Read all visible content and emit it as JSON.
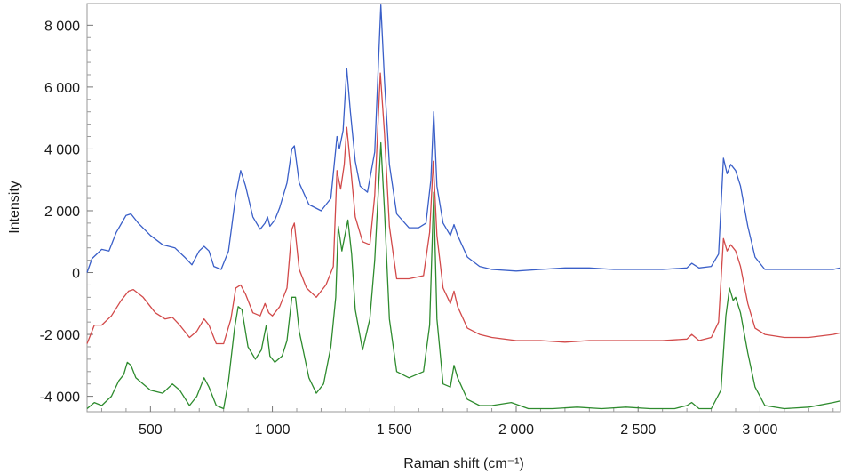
{
  "chart_data": {
    "type": "line",
    "title": "",
    "xlabel": "Raman shift (cm⁻¹)",
    "ylabel": "Intensity",
    "xlim": [
      240,
      3330
    ],
    "ylim": [
      -4500,
      8700
    ],
    "x_ticks": [
      500,
      1000,
      1500,
      2000,
      2500,
      3000
    ],
    "x_tick_labels": [
      "500",
      "1 000",
      "1 500",
      "2 000",
      "2 500",
      "3 000"
    ],
    "y_ticks": [
      -4000,
      -2000,
      0,
      2000,
      4000,
      6000,
      8000
    ],
    "y_tick_labels": [
      "-4 000",
      "-2 000",
      "0",
      "2 000",
      "4 000",
      "6 000",
      "8 000"
    ],
    "grid": false,
    "legend": "none",
    "series": [
      {
        "color": "#3a5fc8",
        "points": [
          [
            240,
            0
          ],
          [
            260,
            450
          ],
          [
            300,
            750
          ],
          [
            330,
            700
          ],
          [
            360,
            1300
          ],
          [
            400,
            1850
          ],
          [
            420,
            1900
          ],
          [
            450,
            1600
          ],
          [
            500,
            1200
          ],
          [
            550,
            900
          ],
          [
            600,
            800
          ],
          [
            640,
            500
          ],
          [
            670,
            250
          ],
          [
            700,
            700
          ],
          [
            720,
            850
          ],
          [
            740,
            700
          ],
          [
            760,
            200
          ],
          [
            790,
            100
          ],
          [
            820,
            700
          ],
          [
            850,
            2500
          ],
          [
            870,
            3300
          ],
          [
            890,
            2800
          ],
          [
            920,
            1800
          ],
          [
            950,
            1400
          ],
          [
            970,
            1600
          ],
          [
            980,
            1800
          ],
          [
            990,
            1500
          ],
          [
            1010,
            1700
          ],
          [
            1030,
            2100
          ],
          [
            1060,
            2900
          ],
          [
            1080,
            4000
          ],
          [
            1090,
            4100
          ],
          [
            1110,
            2900
          ],
          [
            1150,
            2200
          ],
          [
            1200,
            2000
          ],
          [
            1240,
            2400
          ],
          [
            1265,
            4400
          ],
          [
            1275,
            4000
          ],
          [
            1290,
            4600
          ],
          [
            1305,
            6600
          ],
          [
            1320,
            5200
          ],
          [
            1340,
            3600
          ],
          [
            1360,
            2800
          ],
          [
            1390,
            2600
          ],
          [
            1420,
            3900
          ],
          [
            1445,
            8650
          ],
          [
            1460,
            6200
          ],
          [
            1480,
            3500
          ],
          [
            1510,
            1900
          ],
          [
            1560,
            1450
          ],
          [
            1600,
            1450
          ],
          [
            1630,
            1600
          ],
          [
            1650,
            3000
          ],
          [
            1662,
            5200
          ],
          [
            1675,
            2800
          ],
          [
            1700,
            1600
          ],
          [
            1730,
            1200
          ],
          [
            1745,
            1550
          ],
          [
            1760,
            1200
          ],
          [
            1800,
            500
          ],
          [
            1850,
            200
          ],
          [
            1900,
            100
          ],
          [
            2000,
            50
          ],
          [
            2100,
            100
          ],
          [
            2200,
            150
          ],
          [
            2300,
            150
          ],
          [
            2400,
            100
          ],
          [
            2500,
            100
          ],
          [
            2600,
            100
          ],
          [
            2700,
            150
          ],
          [
            2720,
            300
          ],
          [
            2750,
            150
          ],
          [
            2800,
            200
          ],
          [
            2830,
            600
          ],
          [
            2850,
            3700
          ],
          [
            2865,
            3200
          ],
          [
            2880,
            3500
          ],
          [
            2900,
            3300
          ],
          [
            2920,
            2800
          ],
          [
            2950,
            1500
          ],
          [
            2980,
            500
          ],
          [
            3000,
            300
          ],
          [
            3020,
            100
          ],
          [
            3100,
            100
          ],
          [
            3200,
            100
          ],
          [
            3300,
            100
          ],
          [
            3330,
            150
          ]
        ]
      },
      {
        "color": "#d24a4a",
        "points": [
          [
            240,
            -2300
          ],
          [
            270,
            -1700
          ],
          [
            300,
            -1700
          ],
          [
            340,
            -1400
          ],
          [
            380,
            -900
          ],
          [
            410,
            -600
          ],
          [
            430,
            -550
          ],
          [
            470,
            -800
          ],
          [
            520,
            -1300
          ],
          [
            560,
            -1500
          ],
          [
            590,
            -1450
          ],
          [
            620,
            -1700
          ],
          [
            660,
            -2100
          ],
          [
            690,
            -1900
          ],
          [
            720,
            -1500
          ],
          [
            740,
            -1700
          ],
          [
            770,
            -2300
          ],
          [
            800,
            -2300
          ],
          [
            830,
            -1500
          ],
          [
            850,
            -500
          ],
          [
            870,
            -400
          ],
          [
            890,
            -700
          ],
          [
            920,
            -1300
          ],
          [
            950,
            -1400
          ],
          [
            970,
            -1000
          ],
          [
            985,
            -1300
          ],
          [
            1000,
            -1400
          ],
          [
            1030,
            -1100
          ],
          [
            1060,
            -500
          ],
          [
            1080,
            1400
          ],
          [
            1090,
            1600
          ],
          [
            1110,
            100
          ],
          [
            1140,
            -500
          ],
          [
            1180,
            -800
          ],
          [
            1220,
            -400
          ],
          [
            1250,
            200
          ],
          [
            1265,
            3300
          ],
          [
            1280,
            2700
          ],
          [
            1295,
            3500
          ],
          [
            1305,
            4700
          ],
          [
            1320,
            3500
          ],
          [
            1340,
            1800
          ],
          [
            1370,
            1000
          ],
          [
            1400,
            900
          ],
          [
            1420,
            2500
          ],
          [
            1443,
            6450
          ],
          [
            1460,
            4500
          ],
          [
            1480,
            1500
          ],
          [
            1510,
            -200
          ],
          [
            1560,
            -200
          ],
          [
            1620,
            -100
          ],
          [
            1645,
            1300
          ],
          [
            1660,
            3600
          ],
          [
            1675,
            1200
          ],
          [
            1700,
            -500
          ],
          [
            1730,
            -1000
          ],
          [
            1745,
            -600
          ],
          [
            1760,
            -1100
          ],
          [
            1800,
            -1800
          ],
          [
            1850,
            -2000
          ],
          [
            1900,
            -2100
          ],
          [
            2000,
            -2200
          ],
          [
            2100,
            -2200
          ],
          [
            2200,
            -2250
          ],
          [
            2300,
            -2200
          ],
          [
            2400,
            -2200
          ],
          [
            2500,
            -2200
          ],
          [
            2600,
            -2200
          ],
          [
            2700,
            -2150
          ],
          [
            2720,
            -2000
          ],
          [
            2750,
            -2200
          ],
          [
            2800,
            -2100
          ],
          [
            2830,
            -1600
          ],
          [
            2850,
            1100
          ],
          [
            2865,
            700
          ],
          [
            2880,
            900
          ],
          [
            2900,
            700
          ],
          [
            2920,
            200
          ],
          [
            2950,
            -1000
          ],
          [
            2980,
            -1800
          ],
          [
            3000,
            -1900
          ],
          [
            3020,
            -2000
          ],
          [
            3100,
            -2100
          ],
          [
            3200,
            -2100
          ],
          [
            3300,
            -2000
          ],
          [
            3330,
            -1950
          ]
        ]
      },
      {
        "color": "#2e8b2e",
        "points": [
          [
            240,
            -4400
          ],
          [
            270,
            -4200
          ],
          [
            300,
            -4300
          ],
          [
            340,
            -4000
          ],
          [
            370,
            -3500
          ],
          [
            390,
            -3300
          ],
          [
            405,
            -2900
          ],
          [
            420,
            -3000
          ],
          [
            440,
            -3400
          ],
          [
            470,
            -3600
          ],
          [
            500,
            -3800
          ],
          [
            550,
            -3900
          ],
          [
            590,
            -3600
          ],
          [
            620,
            -3800
          ],
          [
            660,
            -4300
          ],
          [
            690,
            -4000
          ],
          [
            720,
            -3400
          ],
          [
            740,
            -3700
          ],
          [
            770,
            -4300
          ],
          [
            800,
            -4400
          ],
          [
            820,
            -3500
          ],
          [
            845,
            -1800
          ],
          [
            860,
            -1100
          ],
          [
            875,
            -1200
          ],
          [
            900,
            -2400
          ],
          [
            930,
            -2800
          ],
          [
            955,
            -2500
          ],
          [
            975,
            -1700
          ],
          [
            990,
            -2700
          ],
          [
            1010,
            -2900
          ],
          [
            1040,
            -2700
          ],
          [
            1060,
            -2200
          ],
          [
            1080,
            -800
          ],
          [
            1095,
            -800
          ],
          [
            1110,
            -1900
          ],
          [
            1150,
            -3400
          ],
          [
            1180,
            -3900
          ],
          [
            1210,
            -3600
          ],
          [
            1240,
            -2400
          ],
          [
            1260,
            -800
          ],
          [
            1270,
            1500
          ],
          [
            1285,
            700
          ],
          [
            1300,
            1300
          ],
          [
            1310,
            1700
          ],
          [
            1325,
            600
          ],
          [
            1340,
            -1200
          ],
          [
            1370,
            -2500
          ],
          [
            1400,
            -1500
          ],
          [
            1420,
            400
          ],
          [
            1445,
            4200
          ],
          [
            1460,
            2000
          ],
          [
            1480,
            -1500
          ],
          [
            1510,
            -3200
          ],
          [
            1560,
            -3400
          ],
          [
            1620,
            -3200
          ],
          [
            1645,
            -1700
          ],
          [
            1662,
            2600
          ],
          [
            1675,
            -1500
          ],
          [
            1700,
            -3600
          ],
          [
            1730,
            -3700
          ],
          [
            1745,
            -3000
          ],
          [
            1760,
            -3400
          ],
          [
            1800,
            -4100
          ],
          [
            1850,
            -4300
          ],
          [
            1900,
            -4300
          ],
          [
            1980,
            -4200
          ],
          [
            2050,
            -4400
          ],
          [
            2150,
            -4400
          ],
          [
            2250,
            -4350
          ],
          [
            2350,
            -4400
          ],
          [
            2450,
            -4350
          ],
          [
            2550,
            -4400
          ],
          [
            2650,
            -4400
          ],
          [
            2700,
            -4300
          ],
          [
            2720,
            -4200
          ],
          [
            2750,
            -4400
          ],
          [
            2800,
            -4400
          ],
          [
            2840,
            -3800
          ],
          [
            2860,
            -1400
          ],
          [
            2875,
            -500
          ],
          [
            2890,
            -900
          ],
          [
            2900,
            -800
          ],
          [
            2920,
            -1300
          ],
          [
            2950,
            -2600
          ],
          [
            2980,
            -3700
          ],
          [
            3000,
            -4000
          ],
          [
            3020,
            -4300
          ],
          [
            3100,
            -4400
          ],
          [
            3200,
            -4350
          ],
          [
            3300,
            -4200
          ],
          [
            3330,
            -4150
          ]
        ]
      }
    ]
  }
}
